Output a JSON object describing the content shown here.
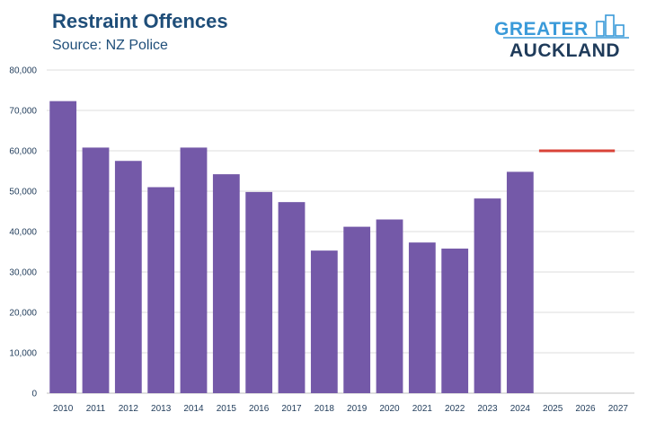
{
  "chart_data": {
    "type": "bar",
    "title": "Restraint Offences",
    "subtitle": "Source: NZ Police",
    "xlabel": "",
    "ylabel": "",
    "categories": [
      "2010",
      "2011",
      "2012",
      "2013",
      "2014",
      "2015",
      "2016",
      "2017",
      "2018",
      "2019",
      "2020",
      "2021",
      "2022",
      "2023",
      "2024",
      "2025",
      "2026",
      "2027"
    ],
    "values": [
      72300,
      60800,
      57500,
      51000,
      60800,
      54200,
      49800,
      47300,
      35300,
      41200,
      43000,
      37300,
      35800,
      48200,
      54800,
      null,
      null,
      null
    ],
    "ylim": [
      0,
      80000
    ],
    "yticks": [
      0,
      10000,
      20000,
      30000,
      40000,
      50000,
      60000,
      70000,
      80000
    ],
    "ytick_labels": [
      "0",
      "10,000",
      "20,000",
      "30,000",
      "40,000",
      "50,000",
      "60,000",
      "70,000",
      "80,000"
    ],
    "grid": true,
    "bar_color": "#7459a8",
    "target_line": {
      "value": 60000,
      "start_category": "2025",
      "end_category": "2027",
      "color": "#d94338"
    }
  },
  "logo": {
    "line1": "GREATER",
    "line2": "AUCKLAND",
    "colors": {
      "primary": "#1f3b5a",
      "accent": "#3a9ad9"
    }
  }
}
